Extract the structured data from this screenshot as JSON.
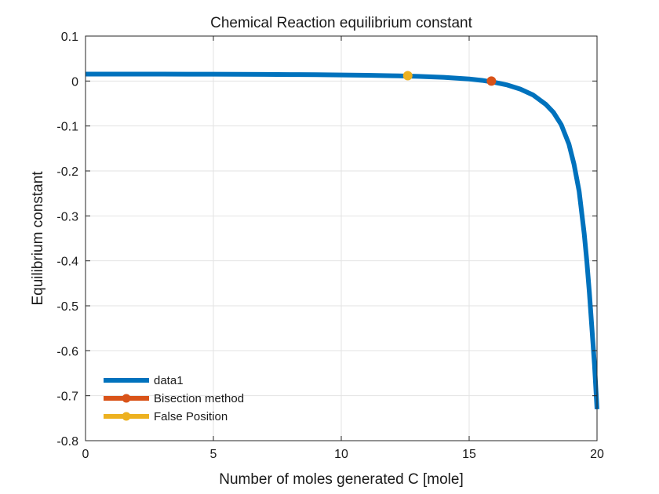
{
  "chart_data": {
    "type": "line",
    "title": "Chemical Reaction equilibrium constant",
    "xlabel": "Number of moles generated C [mole]",
    "ylabel": "Equilibrium constant",
    "xlim": [
      0,
      20
    ],
    "ylim": [
      -0.8,
      0.1
    ],
    "xticks": [
      0,
      5,
      10,
      15,
      20
    ],
    "xtick_labels": [
      "0",
      "5",
      "10",
      "15",
      "20"
    ],
    "yticks": [
      0.1,
      0,
      -0.1,
      -0.2,
      -0.3,
      -0.4,
      -0.5,
      -0.6,
      -0.7,
      -0.8
    ],
    "ytick_labels": [
      "0.1",
      "0",
      "-0.1",
      "-0.2",
      "-0.3",
      "-0.4",
      "-0.5",
      "-0.6",
      "-0.7",
      "-0.8"
    ],
    "grid": true,
    "box": true,
    "legend_location": "bottom-left",
    "series": [
      {
        "name": "data1",
        "color": "#0072BD",
        "marker": "none",
        "x": [
          0,
          1,
          2,
          3,
          4,
          5,
          6,
          7,
          8,
          9,
          10,
          11,
          12,
          13,
          14,
          15,
          15.5,
          16,
          16.5,
          17,
          17.5,
          18,
          18.3,
          18.6,
          18.9,
          19.1,
          19.3,
          19.5,
          19.6,
          19.7,
          19.8,
          19.9,
          20
        ],
        "y": [
          0.0155,
          0.0155,
          0.0154,
          0.0153,
          0.0152,
          0.0151,
          0.0149,
          0.0147,
          0.0144,
          0.014,
          0.0135,
          0.0128,
          0.0118,
          0.0104,
          0.0082,
          0.0045,
          0.0015,
          -0.003,
          -0.009,
          -0.018,
          -0.031,
          -0.052,
          -0.07,
          -0.097,
          -0.14,
          -0.185,
          -0.245,
          -0.34,
          -0.4,
          -0.47,
          -0.55,
          -0.63,
          -0.73
        ]
      },
      {
        "name": "Bisection method",
        "color": "#D95319",
        "marker": "circle",
        "x": [
          15.87
        ],
        "y": [
          0.0
        ]
      },
      {
        "name": "False Position",
        "color": "#EDB120",
        "marker": "circle",
        "x": [
          12.6
        ],
        "y": [
          0.012
        ]
      }
    ]
  }
}
